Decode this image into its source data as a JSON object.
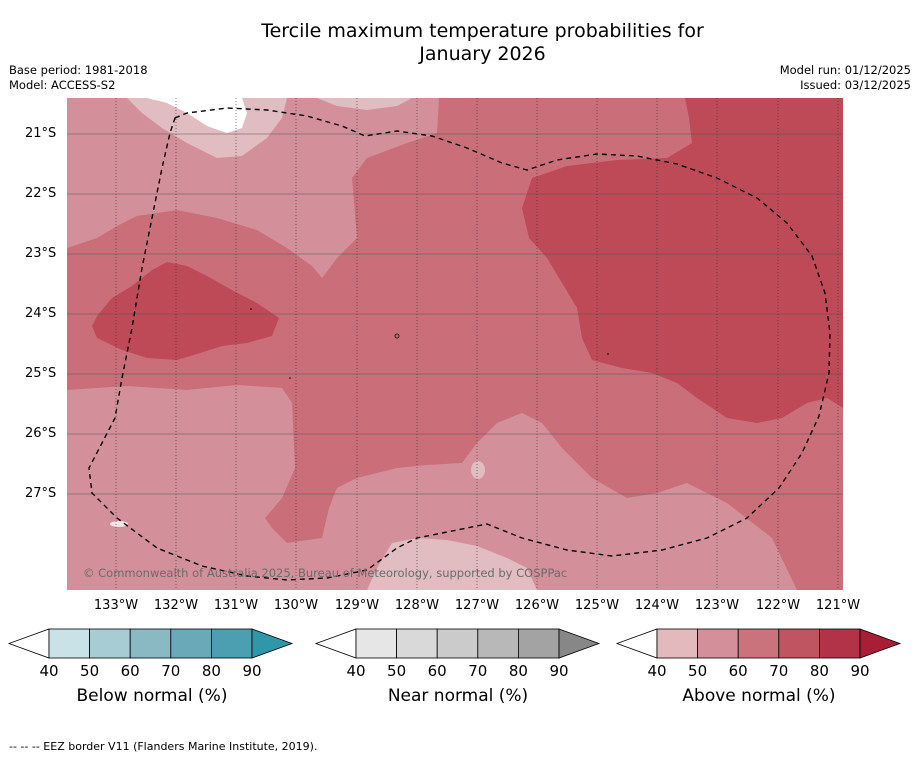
{
  "title": {
    "line1": "Tercile maximum temperature probabilities for",
    "line2": "January 2026"
  },
  "meta": {
    "base_period": "Base period: 1981-2018",
    "model": "Model: ACCESS-S2",
    "model_run": "Model run: 01/12/2025",
    "issued": "Issued: 03/12/2025"
  },
  "map": {
    "copyright": "© Commonwealth of Australia 2025, Bureau of Meteorology, supported by COSPPac",
    "lat_labels": [
      "21°S",
      "22°S",
      "23°S",
      "24°S",
      "25°S",
      "26°S",
      "27°S"
    ],
    "lon_labels": [
      "133°W",
      "132°W",
      "131°W",
      "130°W",
      "129°W",
      "128°W",
      "127°W",
      "126°W",
      "125°W",
      "124°W",
      "123°W",
      "122°W",
      "121°W"
    ],
    "background_color": "#d4909a"
  },
  "colorbars": [
    {
      "title": "Below normal (%)",
      "ticks": [
        "40",
        "50",
        "60",
        "70",
        "80",
        "90"
      ],
      "colors": [
        "#ffffff",
        "#c9e2e7",
        "#a7ccd3",
        "#89bac4",
        "#6aaab8",
        "#4b9fb0",
        "#2f97a9"
      ]
    },
    {
      "title": "Near normal (%)",
      "ticks": [
        "40",
        "50",
        "60",
        "70",
        "80",
        "90"
      ],
      "colors": [
        "#ffffff",
        "#e6e6e6",
        "#d9d9d9",
        "#cbcbcb",
        "#b8b8b8",
        "#a3a3a3",
        "#878787"
      ]
    },
    {
      "title": "Above normal (%)",
      "ticks": [
        "40",
        "50",
        "60",
        "70",
        "80",
        "90"
      ],
      "colors": [
        "#ffffff",
        "#e4b9be",
        "#d4909a",
        "#ca737d",
        "#be5560",
        "#b23348",
        "#a81e36"
      ]
    }
  ],
  "footer": "--  --  -- EEZ border V11 (Flanders Marine Institute, 2019)."
}
